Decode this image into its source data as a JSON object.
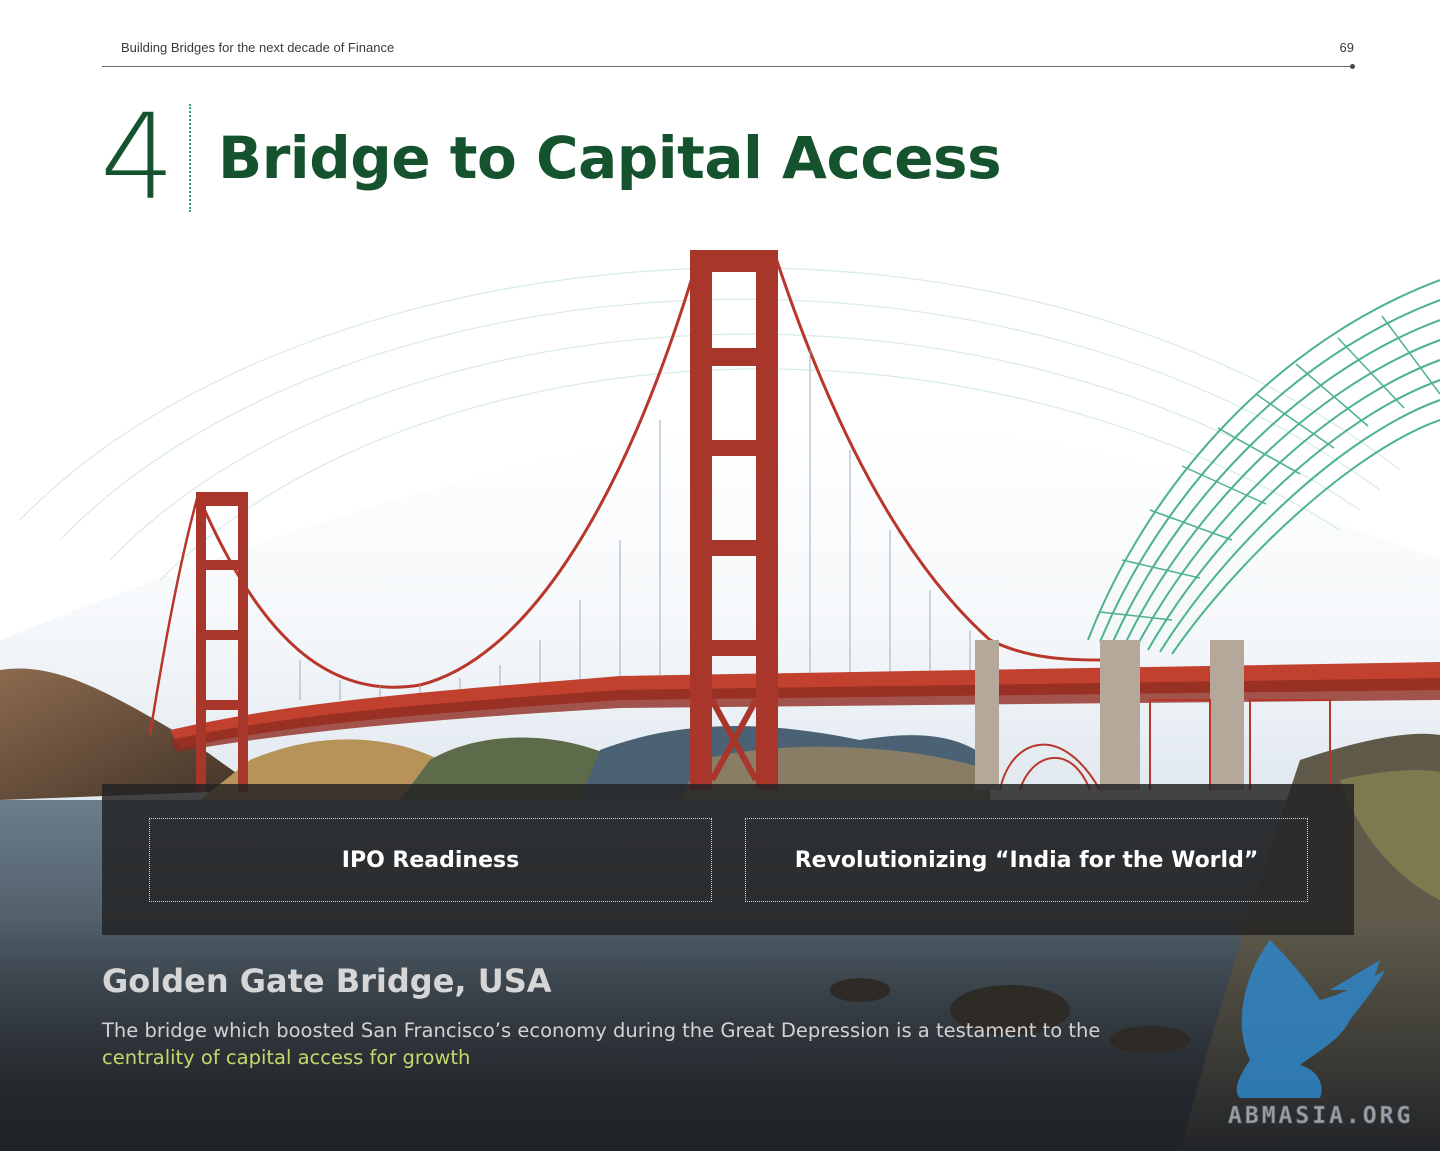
{
  "header": {
    "running_title": "Building Bridges for the next decade of Finance",
    "page_number": "69"
  },
  "chapter": {
    "number": "4",
    "title": "Bridge to Capital Access"
  },
  "options": [
    {
      "label": "IPO Readiness"
    },
    {
      "label": "Revolutionizing “India for the World”"
    }
  ],
  "caption": {
    "title": "Golden Gate Bridge, USA",
    "body": "The bridge which boosted San Francisco’s economy during the Great Depression is a testament to the",
    "highlight": "centrality of capital access for growth"
  },
  "watermark": {
    "text": "ABMASIA.ORG"
  },
  "colors": {
    "title_green": "#14532d",
    "accent_mint": "#4cb38a",
    "bridge_red": "#b8372a",
    "highlight_lime": "#c2d96a"
  }
}
